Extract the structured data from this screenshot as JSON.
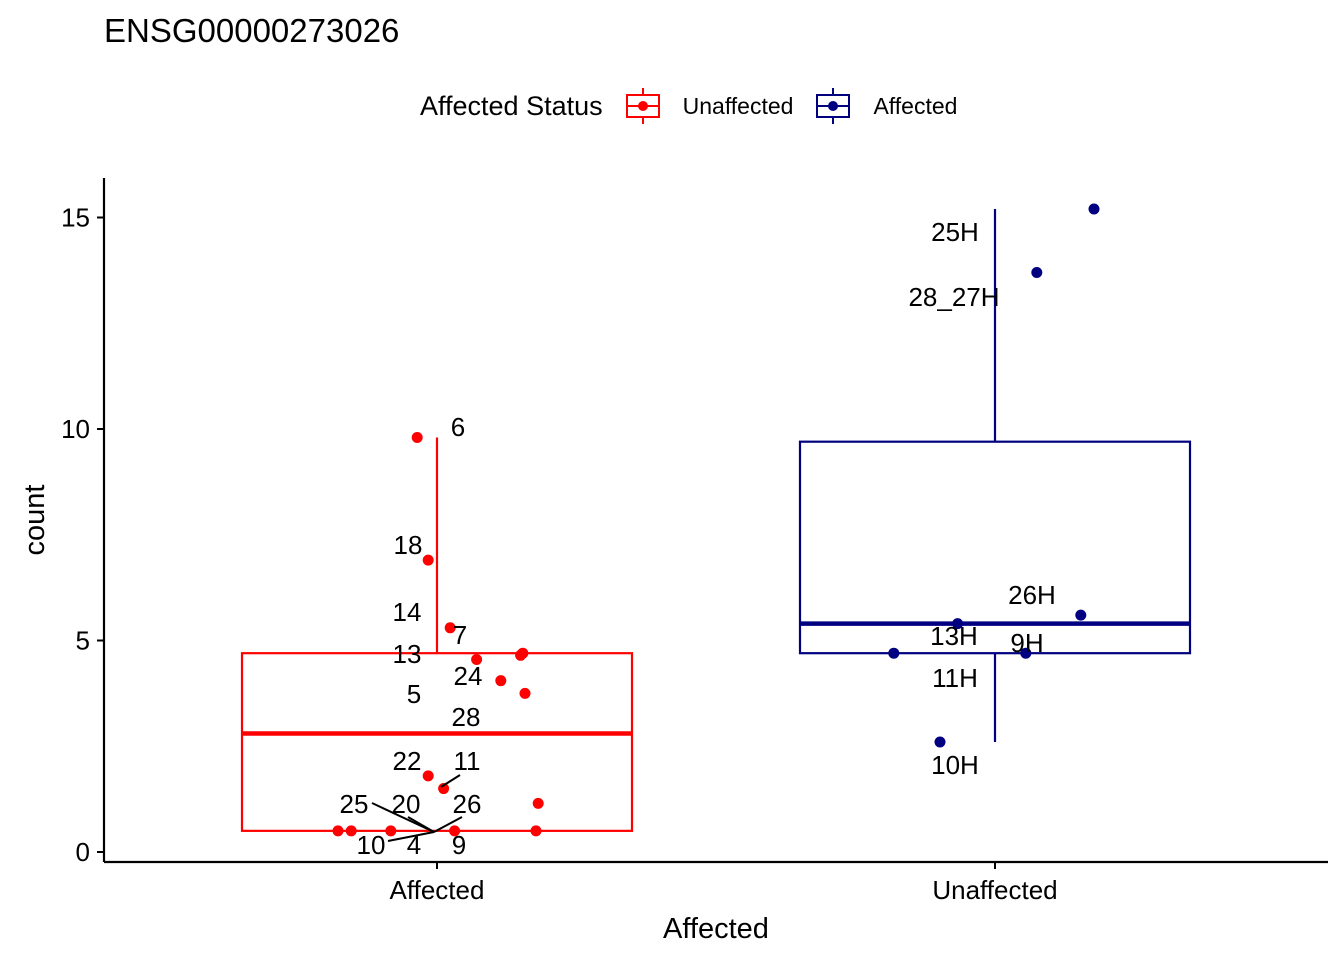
{
  "title": "ENSG00000273026",
  "legend": {
    "title": "Affected Status",
    "items": [
      {
        "label": "Unaffected",
        "color": "#ff0000"
      },
      {
        "label": "Affected",
        "color": "#000080"
      }
    ]
  },
  "chart_data": {
    "type": "box",
    "xlabel": "Affected",
    "ylabel": "count",
    "categories": [
      "Affected",
      "Unaffected"
    ],
    "ylim": [
      -0.2,
      16.0
    ],
    "yticks": [
      0,
      5,
      10,
      15
    ],
    "grid": false,
    "legend_position": "top",
    "boxes": [
      {
        "category": "Affected",
        "series": "Unaffected",
        "color": "#ff0000",
        "whisker_low": 0.5,
        "q1": 0.5,
        "median": 2.8,
        "q3": 4.7,
        "whisker_high": 9.8
      },
      {
        "category": "Unaffected",
        "series": "Affected",
        "color": "#000080",
        "whisker_low": 2.6,
        "q1": 4.7,
        "median": 5.4,
        "q3": 9.7,
        "whisker_high": 15.2
      }
    ],
    "points": [
      {
        "category": "Affected",
        "series": "Unaffected",
        "label": "6",
        "y": 9.8,
        "jitter": -0.09
      },
      {
        "category": "Affected",
        "series": "Unaffected",
        "label": "18",
        "y": 6.9,
        "jitter": -0.04
      },
      {
        "category": "Affected",
        "series": "Unaffected",
        "label": "14",
        "y": 5.3,
        "jitter": 0.06
      },
      {
        "category": "Affected",
        "series": "Unaffected",
        "label": "7",
        "y": 4.7,
        "jitter": 0.39
      },
      {
        "category": "Affected",
        "series": "Unaffected",
        "label": "13",
        "y": 4.65,
        "jitter": 0.38
      },
      {
        "category": "Affected",
        "series": "Unaffected",
        "label": "24",
        "y": 4.55,
        "jitter": 0.18
      },
      {
        "category": "Affected",
        "series": "Unaffected",
        "label": "5",
        "y": 4.05,
        "jitter": 0.29
      },
      {
        "category": "Affected",
        "series": "Unaffected",
        "label": "28",
        "y": 3.75,
        "jitter": 0.4
      },
      {
        "category": "Affected",
        "series": "Unaffected",
        "label": "22",
        "y": 1.8,
        "jitter": -0.04
      },
      {
        "category": "Affected",
        "series": "Unaffected",
        "label": "11",
        "y": 1.5,
        "jitter": 0.03
      },
      {
        "category": "Affected",
        "series": "Unaffected",
        "label": "26",
        "y": 1.15,
        "jitter": 0.46
      },
      {
        "category": "Affected",
        "series": "Unaffected",
        "label": "25",
        "y": 0.5,
        "jitter": -0.45
      },
      {
        "category": "Affected",
        "series": "Unaffected",
        "label": "20",
        "y": 0.5,
        "jitter": -0.39
      },
      {
        "category": "Affected",
        "series": "Unaffected",
        "label": "10",
        "y": 0.5,
        "jitter": -0.21
      },
      {
        "category": "Affected",
        "series": "Unaffected",
        "label": "4",
        "y": 0.5,
        "jitter": 0.08
      },
      {
        "category": "Affected",
        "series": "Unaffected",
        "label": "9",
        "y": 0.5,
        "jitter": 0.45
      },
      {
        "category": "Unaffected",
        "series": "Affected",
        "label": "25H",
        "y": 15.2,
        "jitter": 0.45
      },
      {
        "category": "Unaffected",
        "series": "Affected",
        "label": "28_27H",
        "y": 13.7,
        "jitter": 0.19
      },
      {
        "category": "Unaffected",
        "series": "Affected",
        "label": "26H",
        "y": 5.6,
        "jitter": 0.39
      },
      {
        "category": "Unaffected",
        "series": "Affected",
        "label": "13H",
        "y": 5.4,
        "jitter": -0.17
      },
      {
        "category": "Unaffected",
        "series": "Affected",
        "label": "9H",
        "y": 4.7,
        "jitter": 0.14
      },
      {
        "category": "Unaffected",
        "series": "Affected",
        "label": "11H",
        "y": 4.7,
        "jitter": -0.46
      },
      {
        "category": "Unaffected",
        "series": "Affected",
        "label": "10H",
        "y": 2.6,
        "jitter": -0.25
      }
    ]
  }
}
